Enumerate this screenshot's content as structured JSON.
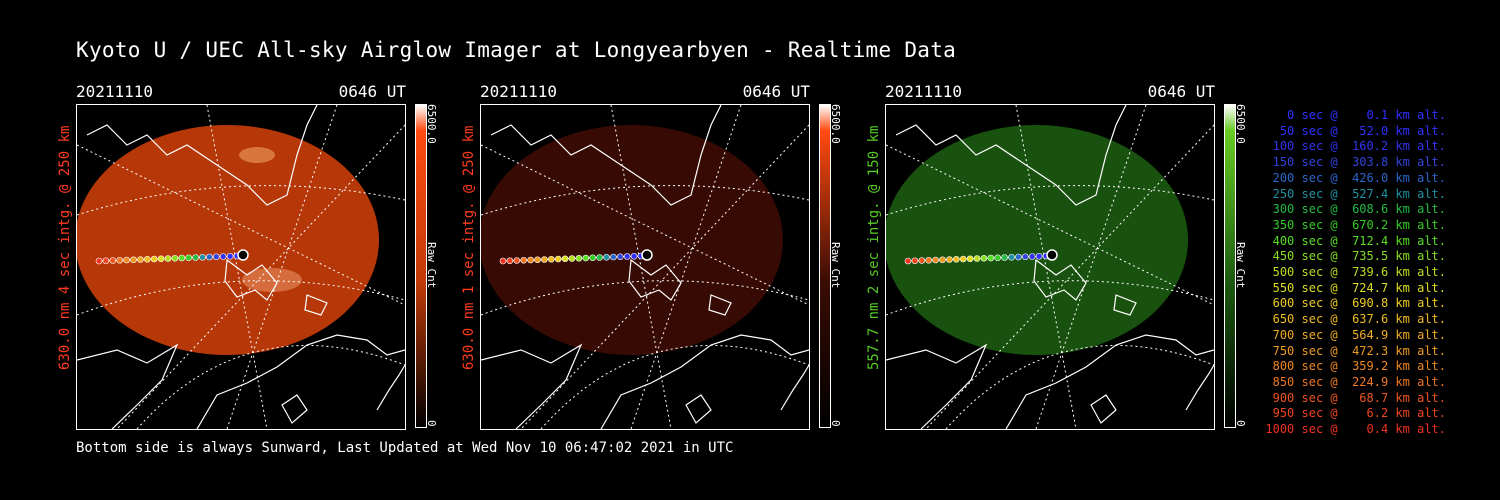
{
  "title": "Kyoto U / UEC All-sky Airglow Imager at Longyearbyen - Realtime Data",
  "panels": [
    {
      "date": "20211110",
      "time": "0646 UT",
      "ylabel": "630.0 nm 4 sec intg. @ 250 km",
      "cbar_max": "6500.0",
      "cbar_min": "0",
      "cbar_label": "Raw Cnt",
      "color": "#ff3b1f",
      "fill": "#c03a08",
      "fill_opacity": 0.95,
      "cbar_top": "#ff4a10"
    },
    {
      "date": "20211110",
      "time": "0646 UT",
      "ylabel": "630.0 nm 1 sec intg. @ 250 km",
      "cbar_max": "6500.0",
      "cbar_min": "0",
      "cbar_label": "Raw Cnt",
      "color": "#ff3b1f",
      "fill": "#3a0c04",
      "fill_opacity": 0.95,
      "cbar_top": "#ff4a10"
    },
    {
      "date": "20211110",
      "time": "0646 UT",
      "ylabel": "557.7 nm 2 sec intg. @ 150 km",
      "cbar_max": "6500.0",
      "cbar_min": "0",
      "cbar_label": "Raw Cnt",
      "color": "#55cc22",
      "fill": "#1c5a10",
      "fill_opacity": 0.9,
      "cbar_top": "#66cc22"
    }
  ],
  "footer": "Bottom side is always Sunward, Last Updated at Wed Nov 10 06:47:02 2021 in UTC",
  "legend": [
    {
      "text": "   0 sec @    0.1 km alt.",
      "color": "#3030ff"
    },
    {
      "text": "  50 sec @   52.0 km alt.",
      "color": "#3030ff"
    },
    {
      "text": " 100 sec @  160.2 km alt.",
      "color": "#3333ee"
    },
    {
      "text": " 150 sec @  303.8 km alt.",
      "color": "#3344dd"
    },
    {
      "text": " 200 sec @  426.0 km alt.",
      "color": "#2a66cc"
    },
    {
      "text": " 250 sec @  527.4 km alt.",
      "color": "#1e90a0"
    },
    {
      "text": " 300 sec @  608.6 km alt.",
      "color": "#22bb44"
    },
    {
      "text": " 350 sec @  670.2 km alt.",
      "color": "#33cc22"
    },
    {
      "text": " 400 sec @  712.4 km alt.",
      "color": "#55dd22"
    },
    {
      "text": " 450 sec @  735.5 km alt.",
      "color": "#88dd22"
    },
    {
      "text": " 500 sec @  739.6 km alt.",
      "color": "#bbdd22"
    },
    {
      "text": " 550 sec @  724.7 km alt.",
      "color": "#dddd22"
    },
    {
      "text": " 600 sec @  690.8 km alt.",
      "color": "#eecc22"
    },
    {
      "text": " 650 sec @  637.6 km alt.",
      "color": "#eebb22"
    },
    {
      "text": " 700 sec @  564.9 km alt.",
      "color": "#eeaa22"
    },
    {
      "text": " 750 sec @  472.3 km alt.",
      "color": "#ee9922"
    },
    {
      "text": " 800 sec @  359.2 km alt.",
      "color": "#ee8822"
    },
    {
      "text": " 850 sec @  224.9 km alt.",
      "color": "#ee7722"
    },
    {
      "text": " 900 sec @   68.7 km alt.",
      "color": "#ee5522"
    },
    {
      "text": " 950 sec @    6.2 km alt.",
      "color": "#ee4422"
    },
    {
      "text": "1000 sec @    0.4 km alt.",
      "color": "#ee3322"
    }
  ]
}
